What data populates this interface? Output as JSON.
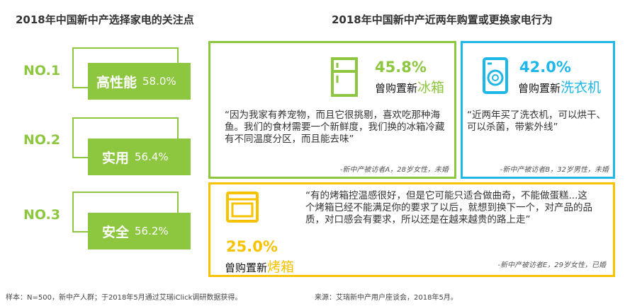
{
  "left": {
    "title": "2018年中国新中产选择家电的关注点",
    "ranks": [
      {
        "no": "NO.1",
        "name": "高性能",
        "pct": "58.0%"
      },
      {
        "no": "NO.2",
        "name": "实用",
        "pct": "56.4%"
      },
      {
        "no": "NO.3",
        "name": "安全",
        "pct": "56.2%"
      }
    ]
  },
  "right": {
    "title": "2018年中国新中产近两年购置或更换家电行为",
    "fridge": {
      "pct": "45.8%",
      "label_prefix": "曾购置新",
      "label_item": "冰箱",
      "quote": "“因为我家有养宠物，而且它很挑剔，喜欢吃那种海鱼。我们的食材需要一个新鲜度，我们换的冰箱冷藏有不同温度分区，而且能去味”",
      "source": "-新中产被访者A，28岁女性，未婚"
    },
    "washer": {
      "pct": "42.0%",
      "label_prefix": "曾购置新",
      "label_item": "洗衣机",
      "quote": "“近两年买了洗衣机，可以烘干、可以杀菌，带紫外线”",
      "source": "-新中产被访者B，32岁男性，未婚"
    },
    "oven": {
      "pct": "25.0%",
      "label_prefix": "曾购置新",
      "label_item": "烤箱",
      "quote": "“有的烤箱控温感很好，但是它可能只适合做曲奇，不能做蛋糕...这个烤箱已经不能满足你的要求了以后，就想到换下一个，对产品的品质，对口感会有要求，所以还是在越来越贵的路上走”",
      "source": "-新中产被访者E，29岁女性，已婚"
    }
  },
  "footer": {
    "sample": "样本：N=500，新中产人群；于2018年5月通过艾瑞iClick调研数据获得。",
    "source": "来源：艾瑞新中产用户座谈会，2018年5月。"
  },
  "colors": {
    "green": "#8dc63f",
    "cyan": "#1fb6e8",
    "yellow": "#f7c200"
  },
  "icons": {
    "fridge": "fridge-icon",
    "washer": "washing-machine-icon",
    "oven": "oven-icon"
  }
}
